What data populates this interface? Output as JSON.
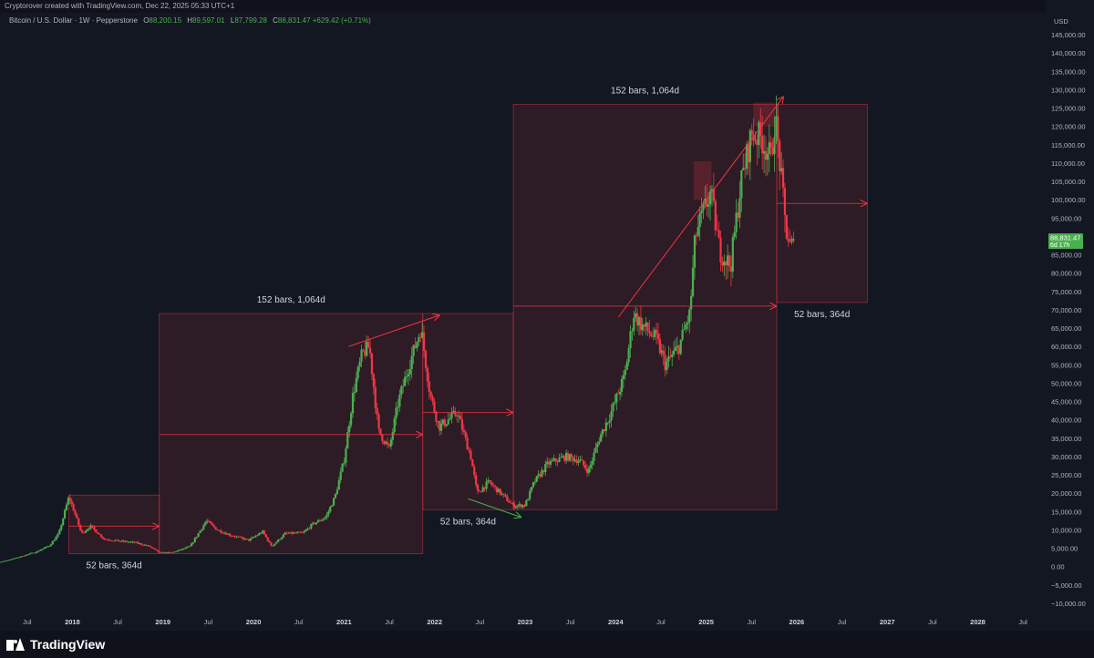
{
  "header": {
    "credit": "Cryptorover created with TradingView.com, Dec 22, 2025 05:33 UTC+1",
    "symbol": "Bitcoin / U.S. Dollar · 1W · Pepperstone",
    "ohlc": [
      {
        "k": "O",
        "v": "88,200.15"
      },
      {
        "k": "H",
        "v": "89,597.01"
      },
      {
        "k": "L",
        "v": "87,799.28"
      },
      {
        "k": "C",
        "v": "88,831.47"
      }
    ],
    "change": "+629.42 (+0.71%)"
  },
  "footer": {
    "brand": "TradingView"
  },
  "colors": {
    "background": "#131722",
    "grid_text": "#b2b5be",
    "up": "#4caf50",
    "down": "#f23645",
    "range_fill": "#f23645",
    "range_line": "#f23645",
    "price_tag": "#4caf50"
  },
  "chart_data": {
    "type": "candlestick",
    "currency": "USD",
    "ylim": [
      -12500,
      147500
    ],
    "xlim": [
      2017.2,
      2028.75
    ],
    "y_ticks": [
      "145,000.00",
      "140,000.00",
      "135,000.00",
      "130,000.00",
      "125,000.00",
      "120,000.00",
      "115,000.00",
      "110,000.00",
      "105,000.00",
      "100,000.00",
      "95,000.00",
      "90,000.00",
      "85,000.00",
      "80,000.00",
      "75,000.00",
      "70,000.00",
      "65,000.00",
      "60,000.00",
      "55,000.00",
      "50,000.00",
      "45,000.00",
      "40,000.00",
      "35,000.00",
      "30,000.00",
      "25,000.00",
      "20,000.00",
      "15,000.00",
      "10,000.00",
      "5,000.00",
      "0.00",
      "−5,000.00",
      "−10,000.00"
    ],
    "x_ticks": [
      {
        "label": "Jul",
        "t": 2017.5,
        "major": false
      },
      {
        "label": "2018",
        "t": 2018.0,
        "major": true
      },
      {
        "label": "Jul",
        "t": 2018.5,
        "major": false
      },
      {
        "label": "2019",
        "t": 2019.0,
        "major": true
      },
      {
        "label": "Jul",
        "t": 2019.5,
        "major": false
      },
      {
        "label": "2020",
        "t": 2020.0,
        "major": true
      },
      {
        "label": "Jul",
        "t": 2020.5,
        "major": false
      },
      {
        "label": "2021",
        "t": 2021.0,
        "major": true
      },
      {
        "label": "Jul",
        "t": 2021.5,
        "major": false
      },
      {
        "label": "2022",
        "t": 2022.0,
        "major": true
      },
      {
        "label": "Jul",
        "t": 2022.5,
        "major": false
      },
      {
        "label": "2023",
        "t": 2023.0,
        "major": true
      },
      {
        "label": "Jul",
        "t": 2023.5,
        "major": false
      },
      {
        "label": "2024",
        "t": 2024.0,
        "major": true
      },
      {
        "label": "Jul",
        "t": 2024.5,
        "major": false
      },
      {
        "label": "2025",
        "t": 2025.0,
        "major": true
      },
      {
        "label": "Jul",
        "t": 2025.5,
        "major": false
      },
      {
        "label": "2026",
        "t": 2026.0,
        "major": true
      },
      {
        "label": "Jul",
        "t": 2026.5,
        "major": false
      },
      {
        "label": "2027",
        "t": 2027.0,
        "major": true
      },
      {
        "label": "Jul",
        "t": 2027.5,
        "major": false
      },
      {
        "label": "2028",
        "t": 2028.0,
        "major": true
      },
      {
        "label": "Jul",
        "t": 2028.5,
        "major": false
      }
    ],
    "price_path": [
      [
        2016.9,
        1000
      ],
      [
        2017.2,
        1200
      ],
      [
        2017.4,
        2500
      ],
      [
        2017.6,
        4000
      ],
      [
        2017.75,
        5800
      ],
      [
        2017.85,
        9000
      ],
      [
        2017.96,
        19000
      ],
      [
        2018.02,
        15000
      ],
      [
        2018.1,
        9000
      ],
      [
        2018.2,
        11000
      ],
      [
        2018.35,
        7500
      ],
      [
        2018.5,
        7000
      ],
      [
        2018.7,
        6500
      ],
      [
        2018.85,
        5500
      ],
      [
        2018.96,
        3800
      ],
      [
        2019.1,
        3800
      ],
      [
        2019.3,
        5500
      ],
      [
        2019.48,
        12500
      ],
      [
        2019.6,
        10000
      ],
      [
        2019.75,
        8500
      ],
      [
        2019.95,
        7200
      ],
      [
        2020.1,
        9500
      ],
      [
        2020.2,
        5500
      ],
      [
        2020.35,
        9000
      ],
      [
        2020.55,
        9200
      ],
      [
        2020.65,
        11500
      ],
      [
        2020.8,
        13500
      ],
      [
        2020.9,
        19000
      ],
      [
        2021.0,
        29000
      ],
      [
        2021.1,
        47000
      ],
      [
        2021.2,
        58000
      ],
      [
        2021.28,
        60000
      ],
      [
        2021.38,
        37000
      ],
      [
        2021.5,
        32000
      ],
      [
        2021.6,
        45000
      ],
      [
        2021.72,
        55000
      ],
      [
        2021.85,
        65000
      ],
      [
        2021.95,
        47000
      ],
      [
        2022.05,
        38000
      ],
      [
        2022.25,
        42000
      ],
      [
        2022.4,
        30000
      ],
      [
        2022.47,
        20000
      ],
      [
        2022.6,
        23000
      ],
      [
        2022.75,
        19500
      ],
      [
        2022.87,
        16500
      ],
      [
        2023.0,
        16800
      ],
      [
        2023.1,
        23000
      ],
      [
        2023.25,
        28000
      ],
      [
        2023.45,
        30000
      ],
      [
        2023.6,
        29000
      ],
      [
        2023.7,
        26000
      ],
      [
        2023.82,
        35000
      ],
      [
        2023.95,
        42000
      ],
      [
        2024.1,
        52000
      ],
      [
        2024.2,
        69000
      ],
      [
        2024.28,
        66000
      ],
      [
        2024.45,
        62000
      ],
      [
        2024.55,
        55000
      ],
      [
        2024.7,
        60000
      ],
      [
        2024.82,
        69000
      ],
      [
        2024.88,
        90000
      ],
      [
        2024.96,
        96000
      ],
      [
        2025.05,
        102000
      ],
      [
        2025.15,
        86000
      ],
      [
        2025.27,
        82000
      ],
      [
        2025.38,
        104000
      ],
      [
        2025.5,
        118000
      ],
      [
        2025.6,
        117000
      ],
      [
        2025.72,
        111000
      ],
      [
        2025.76,
        123000
      ],
      [
        2025.82,
        108000
      ],
      [
        2025.88,
        92000
      ],
      [
        2025.93,
        87000
      ],
      [
        2025.975,
        88831
      ]
    ],
    "last_price": {
      "value": 88831.47,
      "label": "88,831.47",
      "countdown": "6d 17h"
    },
    "range_boxes": [
      {
        "t0": 2017.96,
        "t1": 2018.96,
        "y0": 3500,
        "y1": 19500,
        "arrow_y": 11000,
        "label": "52 bars, 364d",
        "label_y": -500,
        "label_pos": "below"
      },
      {
        "t0": 2018.96,
        "t1": 2021.87,
        "y0": 3500,
        "y1": 69000,
        "arrow_y": 36000,
        "label": "152 bars, 1,064d",
        "label_y": 72000,
        "label_pos": "above"
      },
      {
        "t0": 2021.87,
        "t1": 2022.87,
        "y0": 15500,
        "y1": 69000,
        "arrow_y": 42000,
        "label": "52 bars, 364d",
        "label_y": 11500,
        "label_pos": "below"
      },
      {
        "t0": 2022.87,
        "t1": 2025.78,
        "y0": 15500,
        "y1": 126000,
        "arrow_y": 71000,
        "label": "152 bars, 1,064d",
        "label_y": 129000,
        "label_pos": "above"
      },
      {
        "t0": 2025.78,
        "t1": 2026.78,
        "y0": 72000,
        "y1": 126000,
        "arrow_y": 99000,
        "label": "52 bars, 364d",
        "label_y": 68000,
        "label_pos": "below"
      }
    ],
    "highlight_boxes": [
      {
        "t0": 2024.86,
        "t1": 2025.06,
        "y0": 100000,
        "y1": 110500
      },
      {
        "t0": 2025.52,
        "t1": 2025.76,
        "y0": 120000,
        "y1": 126500
      }
    ],
    "trend_arrows": [
      {
        "t0": 2021.05,
        "y0": 60000,
        "t1": 2022.05,
        "y1": 68500,
        "color": "#f23645"
      },
      {
        "t0": 2022.37,
        "y0": 18500,
        "t1": 2022.95,
        "y1": 13500,
        "color": "#4caf50"
      },
      {
        "t0": 2024.03,
        "y0": 68000,
        "t1": 2025.85,
        "y1": 128000,
        "color": "#f23645"
      }
    ]
  }
}
